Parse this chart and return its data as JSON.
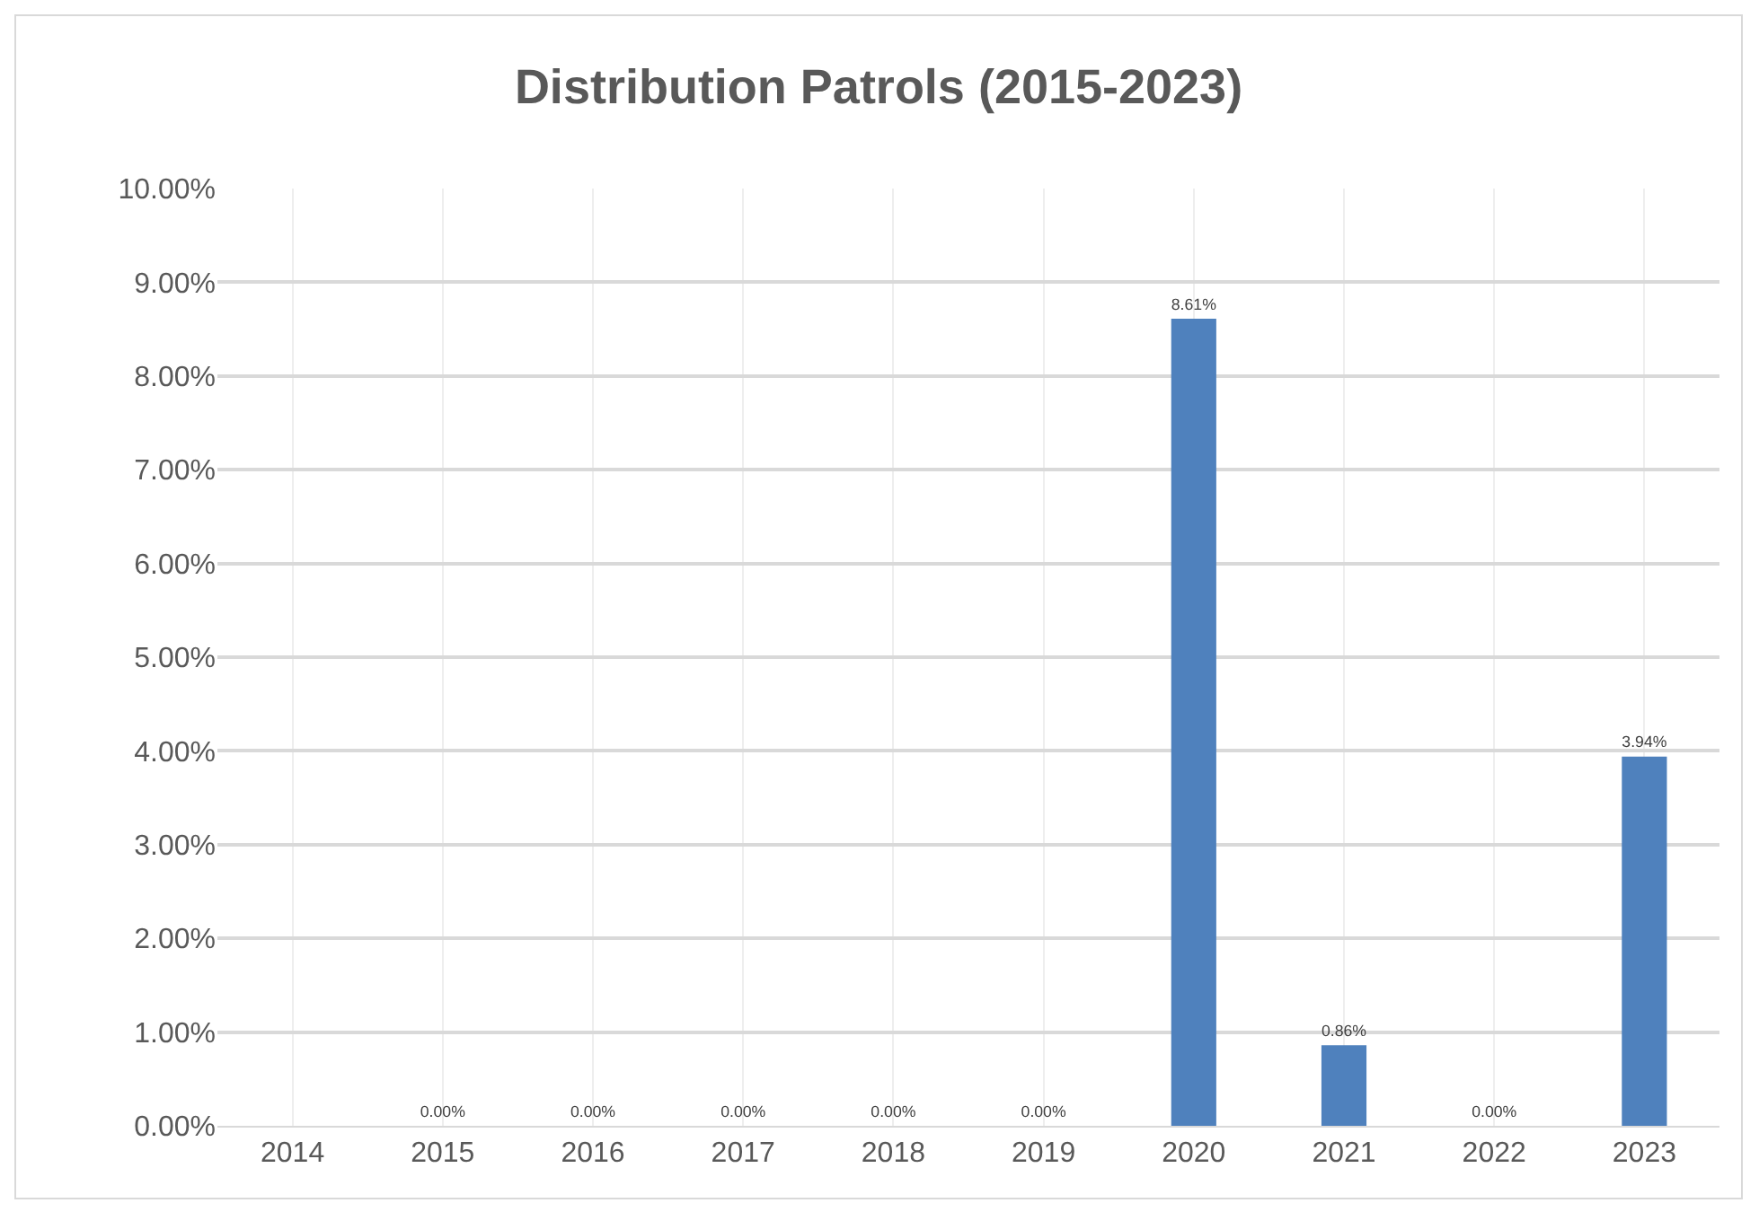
{
  "chart_data": {
    "type": "bar",
    "title": "Distribution Patrols (2015-2023)",
    "categories": [
      "2014",
      "2015",
      "2016",
      "2017",
      "2018",
      "2019",
      "2020",
      "2021",
      "2022",
      "2023"
    ],
    "values": [
      null,
      0,
      0,
      0,
      0,
      0,
      8.61,
      0.86,
      0,
      3.94
    ],
    "value_labels": [
      null,
      "0.00%",
      "0.00%",
      "0.00%",
      "0.00%",
      "0.00%",
      "8.61%",
      "0.86%",
      "0.00%",
      "3.94%"
    ],
    "color": "#4f81bd",
    "ylim": [
      0,
      10
    ],
    "yticks": [
      {
        "value": 0,
        "label": "0.00%"
      },
      {
        "value": 1,
        "label": "1.00%"
      },
      {
        "value": 2,
        "label": "2.00%"
      },
      {
        "value": 3,
        "label": "3.00%"
      },
      {
        "value": 4,
        "label": "4.00%"
      },
      {
        "value": 5,
        "label": "5.00%"
      },
      {
        "value": 6,
        "label": "6.00%"
      },
      {
        "value": 7,
        "label": "7.00%"
      },
      {
        "value": 8,
        "label": "8.00%"
      },
      {
        "value": 9,
        "label": "9.00%"
      },
      {
        "value": 10,
        "label": "10.00%"
      }
    ],
    "grid": true,
    "legend": false
  }
}
